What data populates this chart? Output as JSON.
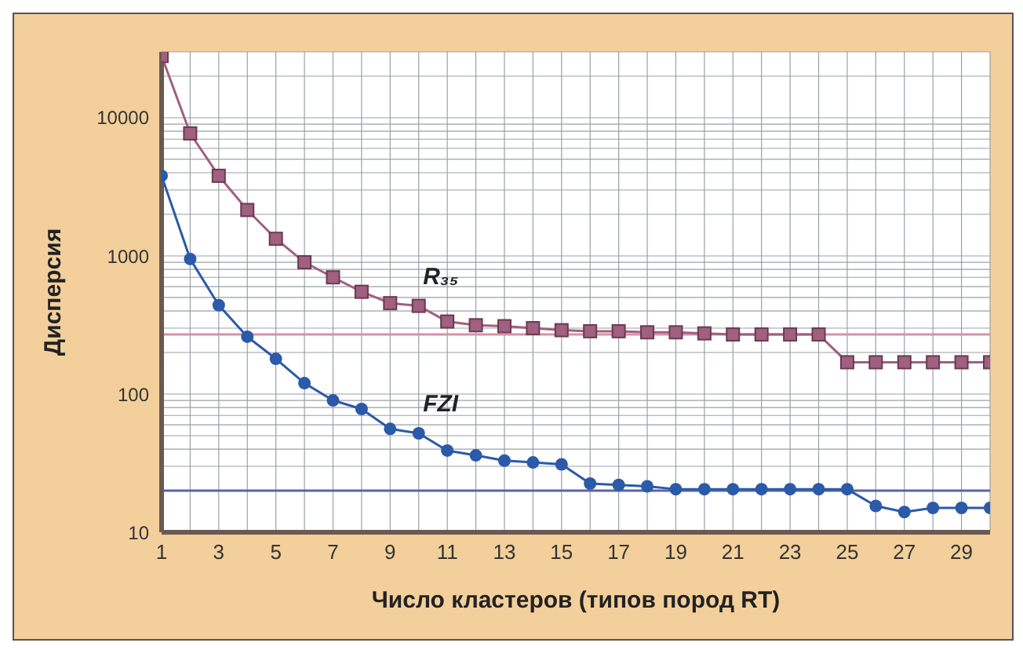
{
  "chart_data": {
    "type": "line",
    "xlabel": "Число кластеров (типов пород RT)",
    "ylabel": "Дисперсия",
    "log": "y",
    "grid": true,
    "legend": false,
    "x": [
      1,
      2,
      3,
      4,
      5,
      6,
      7,
      8,
      9,
      10,
      11,
      12,
      13,
      14,
      15,
      16,
      17,
      18,
      19,
      20,
      21,
      22,
      23,
      24,
      25,
      26,
      27,
      28,
      29,
      30
    ],
    "xlim": [
      1,
      30
    ],
    "xticks": [
      1,
      {
        "value": 2,
        "label": null
      },
      3,
      {
        "value": 4,
        "label": null
      },
      5,
      {
        "value": 6,
        "label": null
      },
      7,
      {
        "value": 8,
        "label": null
      },
      9,
      {
        "value": 10,
        "label": null
      },
      11,
      {
        "value": 12,
        "label": null
      },
      13,
      {
        "value": 14,
        "label": null
      },
      15,
      {
        "value": 16,
        "label": null
      },
      17,
      {
        "value": 18,
        "label": null
      },
      19,
      {
        "value": 20,
        "label": null
      },
      21,
      {
        "value": 22,
        "label": null
      },
      23,
      {
        "value": 24,
        "label": null
      },
      25,
      {
        "value": 26,
        "label": null
      },
      27,
      {
        "value": 28,
        "label": null
      },
      29,
      {
        "value": 30,
        "label": null
      }
    ],
    "ylim": [
      10,
      30000
    ],
    "yticks": [
      10,
      {
        "value": 20,
        "label": null
      },
      {
        "value": 30,
        "label": null
      },
      {
        "value": 40,
        "label": null
      },
      {
        "value": 50,
        "label": null
      },
      {
        "value": 60,
        "label": null
      },
      {
        "value": 70,
        "label": null
      },
      {
        "value": 80,
        "label": null
      },
      {
        "value": 90,
        "label": null
      },
      100,
      {
        "value": 200,
        "label": null
      },
      {
        "value": 300,
        "label": null
      },
      {
        "value": 400,
        "label": null
      },
      {
        "value": 500,
        "label": null
      },
      {
        "value": 600,
        "label": null
      },
      {
        "value": 700,
        "label": null
      },
      {
        "value": 800,
        "label": null
      },
      {
        "value": 900,
        "label": null
      },
      1000,
      {
        "value": 2000,
        "label": null
      },
      {
        "value": 3000,
        "label": null
      },
      {
        "value": 4000,
        "label": null
      },
      {
        "value": 5000,
        "label": null
      },
      {
        "value": 6000,
        "label": null
      },
      {
        "value": 7000,
        "label": null
      },
      {
        "value": 8000,
        "label": null
      },
      {
        "value": 9000,
        "label": null
      },
      10000,
      {
        "value": 20000,
        "label": null
      },
      {
        "value": 30000,
        "label": null
      }
    ],
    "series": [
      {
        "name": "R₃₅",
        "color": "#a06080",
        "marker": "square",
        "values": [
          28000,
          7700,
          3800,
          2150,
          1330,
          900,
          700,
          550,
          455,
          435,
          335,
          315,
          310,
          300,
          290,
          285,
          285,
          280,
          280,
          275,
          270,
          270,
          270,
          270,
          170,
          170,
          170,
          170,
          170,
          170
        ]
      },
      {
        "name": "FZI",
        "color": "#2a5aa8",
        "marker": "circle",
        "values": [
          3800,
          950,
          440,
          260,
          180,
          120,
          90,
          78,
          56,
          52,
          39,
          36,
          33,
          32,
          31,
          22.5,
          22,
          21.5,
          20.5,
          20.5,
          20.5,
          20.5,
          20.5,
          20.5,
          20.5,
          15.5,
          14,
          15,
          15,
          15
        ]
      }
    ],
    "ref_lines": [
      {
        "axis": "y",
        "value": 270,
        "color": "#d890a8"
      },
      {
        "axis": "y",
        "value": 20,
        "color": "#5a64a8"
      }
    ]
  }
}
